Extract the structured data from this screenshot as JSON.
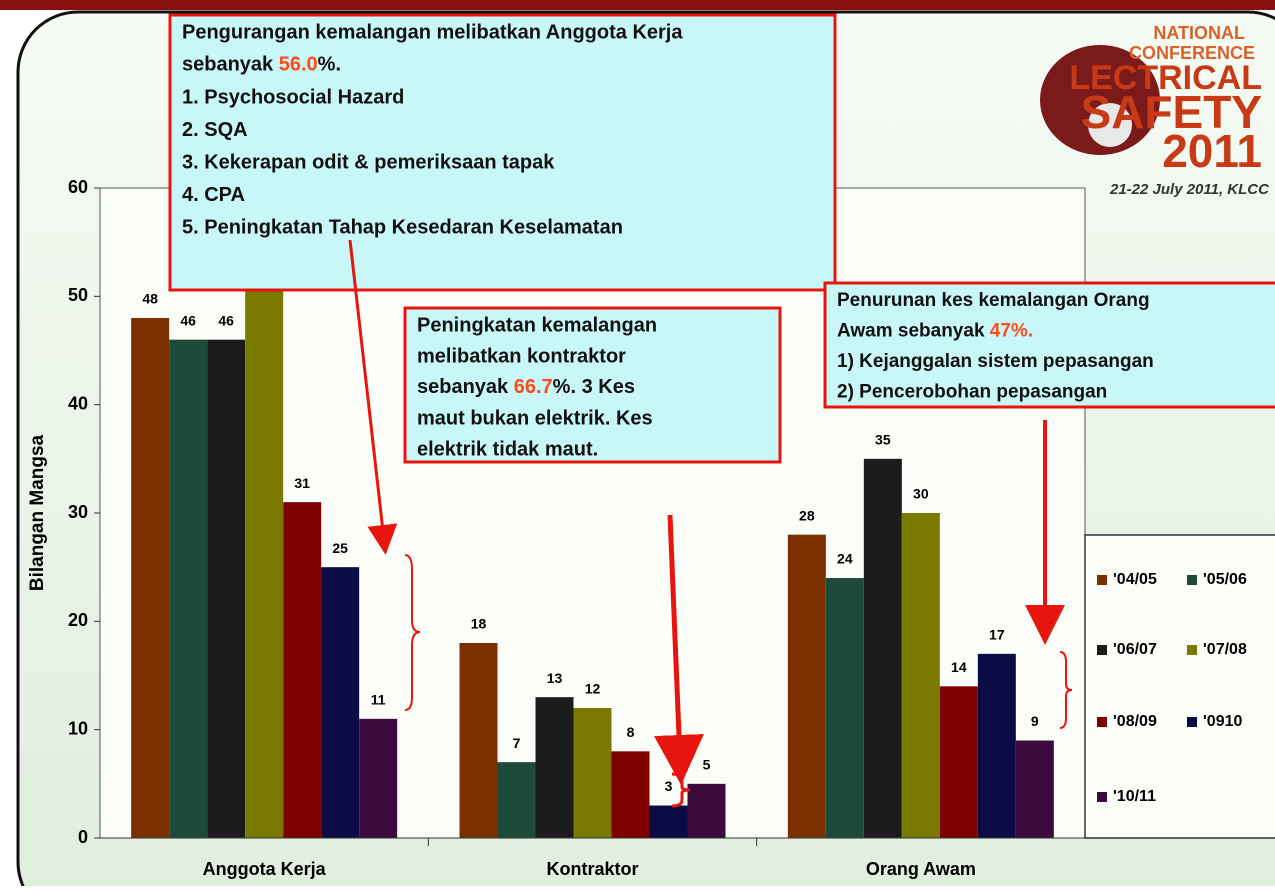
{
  "chart_data": {
    "type": "bar",
    "y_axis_label": "Bilangan Mangsa",
    "categories": [
      "Anggota Kerja",
      "Kontraktor",
      "Orang Awam"
    ],
    "series": [
      {
        "name": "'04/05",
        "color": "#7a3000",
        "values": [
          48,
          18,
          28
        ]
      },
      {
        "name": "'05/06",
        "color": "#1e4a3a",
        "values": [
          46,
          7,
          24
        ]
      },
      {
        "name": "'06/07",
        "color": "#1c1c1c",
        "values": [
          46,
          13,
          35
        ]
      },
      {
        "name": "'07/08",
        "color": "#7a7a00",
        "values": [
          52,
          12,
          30
        ]
      },
      {
        "name": "'08/09",
        "color": "#800000",
        "values": [
          31,
          8,
          14
        ]
      },
      {
        "name": "'0910",
        "color": "#0b0b45",
        "values": [
          25,
          3,
          17
        ]
      },
      {
        "name": "'10/11",
        "color": "#3c0a3c",
        "values": [
          11,
          5,
          9
        ]
      }
    ],
    "ylim": [
      0,
      60
    ],
    "yticks": [
      0,
      10,
      20,
      30,
      40,
      50,
      60
    ],
    "legend": "right",
    "annotations": [
      {
        "lines": [
          "Pengurangan kemalangan melibatkan Anggota Kerja",
          "sebanyak 56.0%.",
          "1. Psychosocial Hazard",
          "2. SQA",
          "3. Kekerapan odit & pemeriksaan tapak",
          "4. CPA",
          "5. Peningkatan Tahap Kesedaran Keselamatan"
        ],
        "highlight": "56.0",
        "highlight_color": "#ff4a1a"
      },
      {
        "lines": [
          "Peningkatan kemalangan",
          "melibatkan kontraktor",
          "sebanyak  66.7%. 3 Kes",
          "maut bukan elektrik. Kes",
          "elektrik tidak maut."
        ],
        "highlight": "66.7",
        "highlight_color": "#ff4a1a"
      },
      {
        "lines": [
          "Penurunan kes kemalangan Orang",
          "Awam sebanyak 47%.",
          "1) Kejanggalan sistem pepasangan",
          "2)  Pencerobohan pepasangan"
        ],
        "highlight": "47%.",
        "highlight_color": "#ff4a1a"
      }
    ]
  },
  "logo": {
    "lines": [
      "NATIONAL",
      "CONFERENCE",
      "LECTRICAL",
      "SAFETY",
      "2011"
    ],
    "date": "21-22 July 2011, KLCC"
  }
}
